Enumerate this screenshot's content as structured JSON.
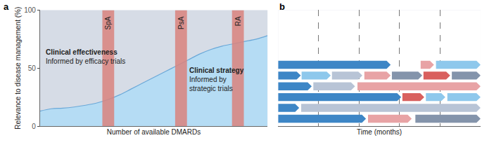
{
  "chart_data": [
    {
      "type": "area",
      "title": "a",
      "x_label": "Number of available DMARDs",
      "y_label": "Relevance to disease management (%)",
      "x": [
        0,
        5,
        10,
        15,
        20,
        25,
        30,
        35,
        40,
        45,
        50,
        55,
        60,
        65,
        70,
        75,
        80,
        85,
        90,
        95,
        100
      ],
      "values": [
        13,
        15,
        15.5,
        16.5,
        18,
        20,
        23,
        27,
        32,
        37,
        42,
        47,
        52,
        57,
        62,
        66,
        69,
        71,
        73,
        75,
        78
      ],
      "color": "#b5dcf4",
      "xlim": [
        0,
        100
      ],
      "ylim": [
        0,
        100
      ],
      "yticks": [
        0,
        50,
        100
      ],
      "tick_labels": "y",
      "bands": [
        {
          "label": "SpA",
          "x": 30,
          "color": "#d9837d"
        },
        {
          "label": "PsA",
          "x": 62,
          "color": "#d9837d"
        },
        {
          "label": "RA",
          "x": 87,
          "color": "#d9837d"
        }
      ],
      "annotations": [
        [
          "Clinical effectiveness",
          "Informed by efficacy trials"
        ],
        [
          "Clinical strategy",
          "Informed by",
          "strategic trials"
        ]
      ]
    },
    {
      "type": "timeline",
      "title": "b",
      "x_label": "Time (months)",
      "xlim": [
        0,
        5
      ],
      "xticks": [
        1,
        2,
        3,
        4
      ],
      "grid": true,
      "tick_labels": false,
      "rows": [
        [
          {
            "start": 0,
            "end": 2.78,
            "color": "#3d86c6"
          },
          {
            "start": 3.52,
            "end": 3.85,
            "color": "#e8a3a5"
          },
          {
            "start": 3.9,
            "end": 5,
            "color": "#8ec8ec"
          }
        ],
        [
          {
            "start": 0,
            "end": 0.56,
            "color": "#3d86c6"
          },
          {
            "start": 0.58,
            "end": 1.3,
            "color": "#8ec8ec"
          },
          {
            "start": 1.33,
            "end": 2.08,
            "color": "#b8c4d6"
          },
          {
            "start": 2.13,
            "end": 2.78,
            "color": "#e8a3a5"
          },
          {
            "start": 2.81,
            "end": 3.56,
            "color": "#8494ab"
          },
          {
            "start": 3.59,
            "end": 4.25,
            "color": "#d9605e"
          },
          {
            "start": 4.29,
            "end": 5,
            "color": "#8494ab"
          }
        ],
        [
          {
            "start": 0,
            "end": 0.83,
            "color": "#3d86c6"
          },
          {
            "start": 0.87,
            "end": 1.9,
            "color": "#b8c4d6"
          },
          {
            "start": 1.96,
            "end": 5,
            "color": "#e8a3a5"
          }
        ],
        [
          {
            "start": 0,
            "end": 3.04,
            "color": "#3d86c6"
          },
          {
            "start": 3.07,
            "end": 3.61,
            "color": "#d9605e"
          },
          {
            "start": 3.65,
            "end": 4.13,
            "color": "#8ec8ec"
          },
          {
            "start": 4.18,
            "end": 5,
            "color": "#8ec8ec"
          }
        ],
        [
          {
            "start": 0,
            "end": 0.52,
            "color": "#3d86c6"
          },
          {
            "start": 0.57,
            "end": 5,
            "color": "#b8c4d6"
          }
        ],
        [
          {
            "start": 0,
            "end": 2.17,
            "color": "#3d86c6"
          },
          {
            "start": 2.22,
            "end": 3.3,
            "color": "#e8a3a5"
          },
          {
            "start": 3.39,
            "end": 5,
            "color": "#8494ab"
          }
        ]
      ]
    }
  ]
}
